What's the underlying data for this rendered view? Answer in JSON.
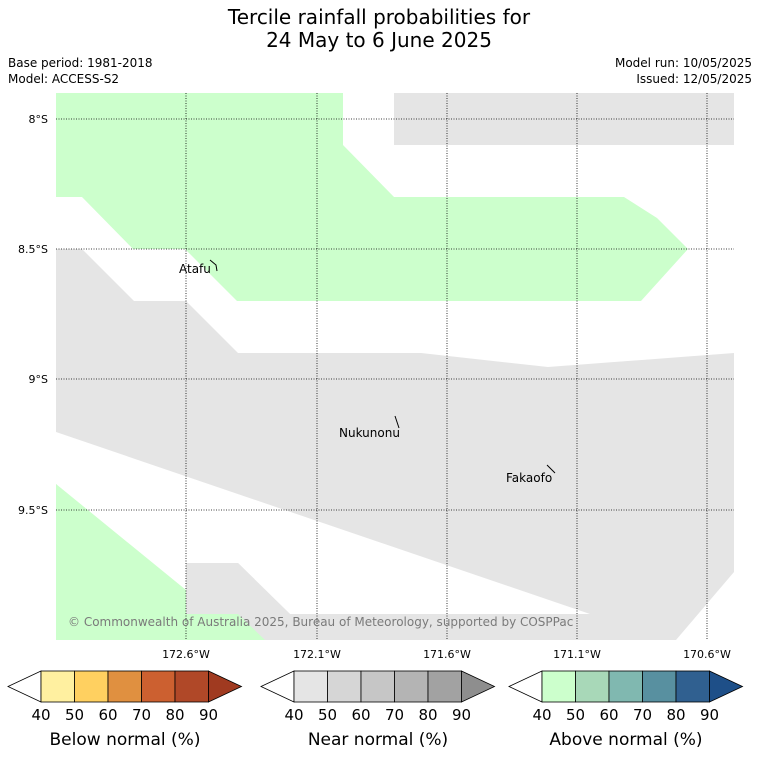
{
  "title_line1": "Tercile rainfall probabilities for",
  "title_line2": "24 May to 6 June 2025",
  "meta": {
    "base_period": "Base period: 1981-2018",
    "model": "Model: ACCESS-S2",
    "model_run": "Model run: 10/05/2025",
    "issued": "Issued: 12/05/2025"
  },
  "map": {
    "lat_labels": [
      "8°S",
      "8.5°S",
      "9°S",
      "9.5°S"
    ],
    "lon_labels": [
      "172.6°W",
      "172.1°W",
      "171.6°W",
      "171.1°W",
      "170.6°W"
    ],
    "places": [
      "Atafu",
      "Nukunonu",
      "Fakaofo"
    ],
    "copyright": "© Commonwealth of Australia 2025, Bureau of Meteorology, supported by COSPPac",
    "category_colors": {
      "above_40": "#ccffcc",
      "near_40": "#e5e5e5"
    }
  },
  "colorbars": [
    {
      "name": "below",
      "title": "Below normal (%)",
      "ticks": [
        "40",
        "50",
        "60",
        "70",
        "80",
        "90"
      ],
      "colors": [
        "#ffffff",
        "#fff0a0",
        "#ffd060",
        "#e09040",
        "#cc6030",
        "#b04828",
        "#a03a20"
      ]
    },
    {
      "name": "near",
      "title": "Near normal (%)",
      "ticks": [
        "40",
        "50",
        "60",
        "70",
        "80",
        "90"
      ],
      "colors": [
        "#ffffff",
        "#e5e5e5",
        "#d6d6d6",
        "#c6c6c6",
        "#b4b4b4",
        "#a2a2a2",
        "#8e8e8e"
      ]
    },
    {
      "name": "above",
      "title": "Above normal (%)",
      "ticks": [
        "40",
        "50",
        "60",
        "70",
        "80",
        "90"
      ],
      "colors": [
        "#ffffff",
        "#ccffcc",
        "#a8d8b8",
        "#80b8b0",
        "#5890a0",
        "#306090",
        "#1e4f88"
      ]
    }
  ]
}
